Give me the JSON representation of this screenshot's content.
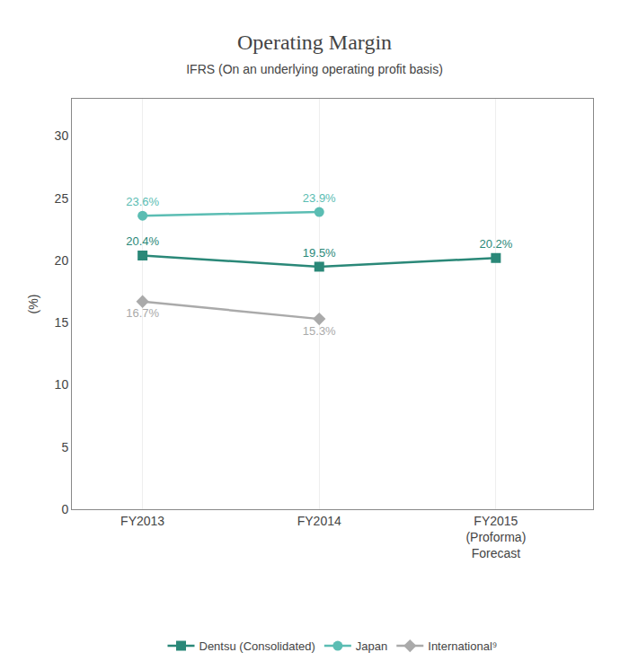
{
  "chart_data": {
    "type": "line",
    "title": "Operating Margin",
    "subtitle": "IFRS (On an underlying operating profit basis)",
    "ylabel": "(%)",
    "categories": [
      "FY2013",
      "FY2014",
      "FY2015\n(Proforma)\nForecast"
    ],
    "series": [
      {
        "name": "Dentsu (Consolidated)",
        "color": "#2a8878",
        "marker": "square",
        "values": [
          20.4,
          19.5,
          20.2
        ],
        "value_labels": [
          "20.4%",
          "19.5%",
          "20.2%"
        ]
      },
      {
        "name": "Japan",
        "color": "#5bbdb3",
        "marker": "circle",
        "values": [
          23.6,
          23.9,
          null
        ],
        "value_labels": [
          "23.6%",
          "23.9%",
          null
        ]
      },
      {
        "name": "International⁹",
        "color": "#aaaaaa",
        "marker": "diamond",
        "values": [
          16.7,
          15.3,
          null
        ],
        "value_labels": [
          "16.7%",
          "15.3%",
          null
        ]
      }
    ],
    "ylim": [
      0,
      33
    ],
    "yticks": [
      0,
      5,
      10,
      15,
      20,
      25,
      30
    ],
    "grid": "x",
    "legend": "bottom",
    "data_labels": true
  }
}
